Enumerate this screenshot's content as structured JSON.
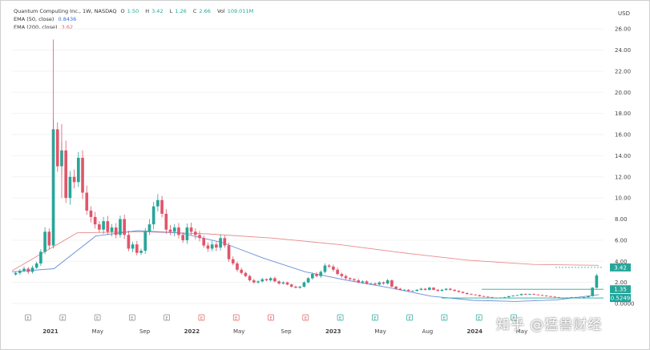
{
  "header": {
    "symbol_line": "Quantum Computing Inc., 1W, NASDAQ",
    "ohlc": [
      {
        "k": "O",
        "v": "1.50"
      },
      {
        "k": "H",
        "v": "3.42"
      },
      {
        "k": "L",
        "v": "1.26"
      },
      {
        "k": "C",
        "v": "2.66"
      },
      {
        "k": "Vol",
        "v": "109.011M"
      }
    ],
    "ema50_label": "EMA (50, close)",
    "ema50_value": "0.8436",
    "ema200_label": "EMA (200, close)",
    "ema200_value": "3.62"
  },
  "watermark": "知乎 @猛兽财经",
  "chart_data": {
    "type": "candlestick",
    "title": "",
    "currency": "USD",
    "ylim": [
      0,
      27
    ],
    "y_ticks": [
      "26.00",
      "24.00",
      "22.00",
      "20.00",
      "18.00",
      "16.00",
      "14.00",
      "12.00",
      "10.00",
      "8.00",
      "6.00",
      "4.00",
      "2.00",
      "0.0000"
    ],
    "x_tick_labels": [
      "2021",
      "May",
      "Sep",
      "2022",
      "May",
      "Sep",
      "2023",
      "May",
      "Aug",
      "2024",
      "May"
    ],
    "price_labels": [
      {
        "text": "3.42",
        "value": 3.42
      },
      {
        "text": "1.35",
        "value": 1.35
      },
      {
        "text": "0.5249",
        "value": 0.5249
      }
    ],
    "event_markers": [
      "E",
      "E",
      "E",
      "E",
      "E",
      "E",
      "E",
      "E",
      "E",
      "E",
      "E",
      "E",
      "E",
      "E",
      "E"
    ],
    "ema200": [
      3.1,
      6.7,
      6.8,
      6.6,
      6.2,
      5.6,
      4.8,
      4.1,
      3.7,
      3.62
    ],
    "ema50": [
      3.0,
      3.3,
      6.4,
      6.9,
      6.7,
      5.8,
      4.3,
      3.0,
      2.2,
      1.5,
      0.7,
      0.3,
      0.2,
      0.35,
      0.8436
    ],
    "weekly_closes": [
      2.9,
      3.1,
      3.3,
      3.0,
      3.4,
      3.8,
      4.9,
      6.8,
      5.5,
      16.5,
      13.0,
      14.5,
      10.0,
      12.0,
      11.5,
      13.8,
      10.5,
      8.8,
      8.2,
      7.5,
      7.0,
      7.8,
      6.8,
      7.2,
      6.5,
      8.0,
      6.5,
      5.2,
      5.6,
      4.8,
      5.0,
      6.8,
      7.5,
      9.2,
      9.8,
      8.5,
      7.0,
      6.8,
      7.2,
      6.5,
      6.0,
      7.2,
      6.8,
      6.5,
      6.2,
      5.5,
      5.2,
      5.6,
      5.3,
      6.2,
      5.5,
      4.2,
      3.8,
      3.2,
      2.9,
      2.6,
      2.2,
      2.0,
      2.1,
      2.3,
      2.2,
      2.4,
      2.1,
      1.9,
      2.0,
      1.8,
      1.6,
      1.5,
      1.6,
      2.0,
      2.4,
      2.8,
      2.6,
      3.0,
      3.6,
      3.5,
      3.2,
      2.8,
      2.6,
      2.4,
      2.3,
      2.2,
      2.0,
      2.1,
      1.9,
      1.9,
      1.8,
      2.0,
      1.9,
      2.2,
      1.6,
      1.4,
      1.3,
      1.3,
      1.2,
      1.2,
      1.3,
      1.4,
      1.3,
      1.5,
      1.3,
      1.2,
      1.3,
      1.4,
      1.3,
      1.2,
      1.1,
      1.0,
      0.9,
      0.85,
      0.8,
      0.7,
      0.65,
      0.6,
      0.55,
      0.5,
      0.55,
      0.6,
      0.7,
      0.75,
      0.8,
      0.9,
      0.85,
      0.9,
      0.85,
      0.8,
      0.75,
      0.7,
      0.65,
      0.6,
      0.55,
      0.5,
      0.55,
      0.6,
      0.55,
      0.5,
      0.6,
      0.7,
      1.5,
      2.66
    ]
  }
}
